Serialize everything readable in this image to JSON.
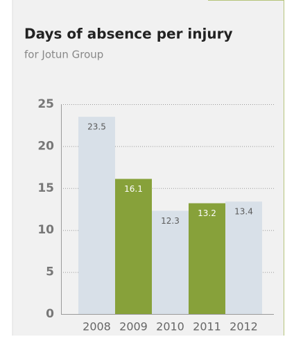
{
  "chart_data": {
    "type": "bar",
    "title": "Days of absence per injury",
    "subtitle": "for Jotun Group",
    "categories": [
      "2008",
      "2009",
      "2010",
      "2011",
      "2012"
    ],
    "values": [
      23.5,
      16.1,
      12.3,
      13.2,
      13.4
    ],
    "colors": [
      "#d8e0e8",
      "#87a13a",
      "#d8e0e8",
      "#87a13a",
      "#d8e0e8"
    ],
    "label_colors": [
      "#5a5a5a",
      "#ffffff",
      "#5a5a5a",
      "#ffffff",
      "#5a5a5a"
    ],
    "ylim": [
      0,
      25
    ],
    "yticks": [
      0,
      5,
      10,
      15,
      20,
      25
    ],
    "grid": true
  }
}
